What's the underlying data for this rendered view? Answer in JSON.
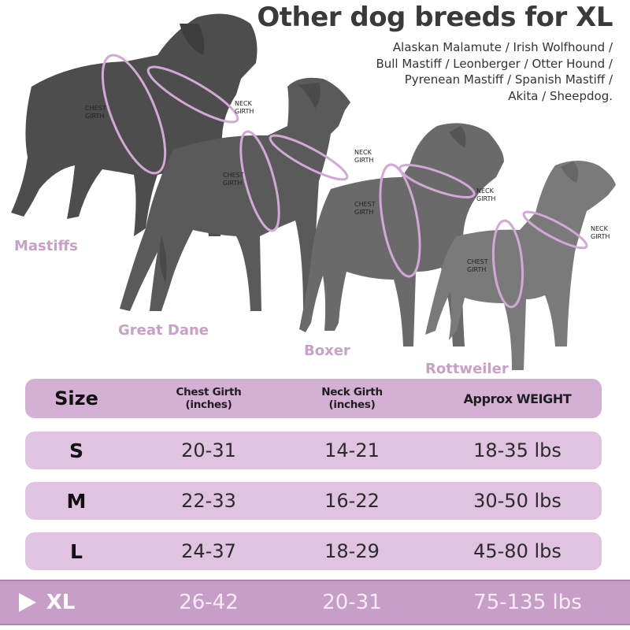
{
  "title": "Other dog breeds for XL",
  "breeds_lines": [
    "Alaskan Malamute / Irish Wolfhound /",
    "Bull Mastiff / Leonberger / Otter Hound /",
    "Pyrenean Mastiff / Spanish Mastiff /",
    "Akita / Sheepdog."
  ],
  "dogs": [
    {
      "name": "Mastiffs",
      "chest_label": [
        "CHEST",
        "GIRTH"
      ],
      "neck_label": [
        "NECK",
        "GIRTH"
      ]
    },
    {
      "name": "Great Dane",
      "chest_label": [
        "CHEST",
        "GIRTH"
      ],
      "neck_label": [
        "NECK",
        "GIRTH"
      ]
    },
    {
      "name": "Boxer",
      "chest_label": [
        "CHEST",
        "GIRTH"
      ],
      "neck_label": [
        "NECK",
        "GIRTH"
      ]
    },
    {
      "name": "Rottweiler",
      "chest_label": [
        "CHEST",
        "GIRTH"
      ],
      "neck_label": [
        "NECK",
        "GIRTH"
      ]
    }
  ],
  "table": {
    "headers": {
      "size": "Size",
      "chest_line1": "Chest Girth",
      "chest_line2": "(inches)",
      "neck_line1": "Neck Girth",
      "neck_line2": "(inches)",
      "weight": "Approx WEIGHT"
    },
    "rows": [
      {
        "size": "S",
        "chest": "20-31",
        "neck": "14-21",
        "weight": "18-35 lbs"
      },
      {
        "size": "M",
        "chest": "22-33",
        "neck": "16-22",
        "weight": "30-50 lbs"
      },
      {
        "size": "L",
        "chest": "24-37",
        "neck": "18-29",
        "weight": "45-80 lbs"
      },
      {
        "size": "XL",
        "chest": "26-42",
        "neck": "20-31",
        "weight": "75-135 lbs",
        "highlighted": true
      }
    ]
  },
  "colors": {
    "dog_fill": "#5e5e5e",
    "strap": "#d2a8d6",
    "breed_label": "#c8a0c8",
    "row_fill": "#e0c3e0",
    "header_fill": "#d4b0d4",
    "highlight_fill": "#c79ec7"
  },
  "icons": {
    "selected_marker": "play-triangle-icon"
  }
}
